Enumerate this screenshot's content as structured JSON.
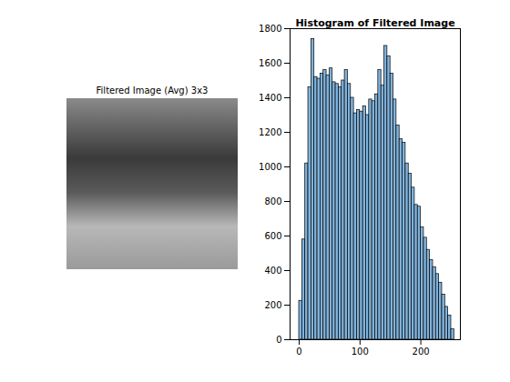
{
  "chart_data": [
    {
      "type": "image",
      "title": "Filtered Image (Avg) 3x3",
      "tick_labels": false
    },
    {
      "type": "histogram",
      "title": "Histogram of Filtered Image",
      "bins": [
        0,
        5,
        10,
        15,
        20,
        25,
        30,
        35,
        40,
        45,
        50,
        55,
        60,
        65,
        70,
        75,
        80,
        85,
        90,
        95,
        100,
        105,
        110,
        115,
        120,
        125,
        130,
        135,
        140,
        145,
        150,
        155,
        160,
        165,
        170,
        175,
        180,
        185,
        190,
        195,
        200,
        205,
        210,
        215,
        220,
        225,
        230,
        235,
        240,
        245,
        250,
        255
      ],
      "counts": [
        225,
        580,
        1020,
        1460,
        1740,
        1520,
        1510,
        1540,
        1560,
        1530,
        1570,
        1490,
        1480,
        1460,
        1500,
        1560,
        1480,
        1400,
        1310,
        1330,
        1320,
        1350,
        1300,
        1390,
        1380,
        1420,
        1560,
        1470,
        1700,
        1640,
        1540,
        1390,
        1240,
        1160,
        1140,
        1020,
        960,
        880,
        780,
        770,
        650,
        590,
        520,
        460,
        420,
        380,
        330,
        260,
        190,
        140,
        60
      ],
      "color": "#80b3dc",
      "xlim": [
        -15,
        265
      ],
      "xticks": [
        0,
        100,
        200
      ],
      "ylim": [
        0,
        1800
      ],
      "yticks": [
        0,
        200,
        400,
        600,
        800,
        1000,
        1200,
        1400,
        1600,
        1800
      ],
      "grid": false
    }
  ]
}
